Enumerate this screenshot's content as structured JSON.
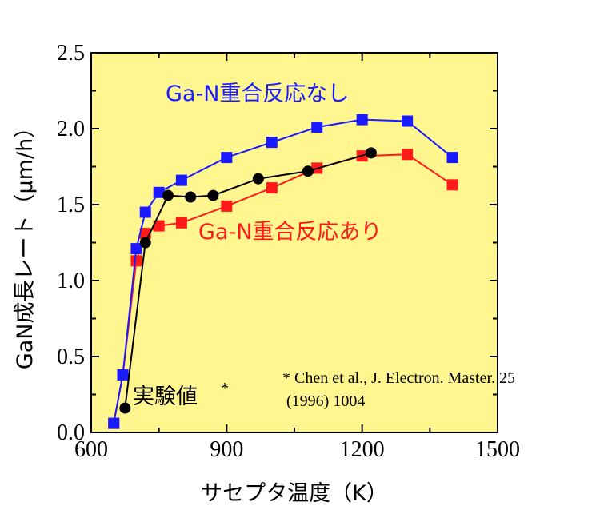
{
  "chart_data": {
    "type": "line",
    "xlabel": "サセプタ温度（K）",
    "ylabel": "GaN成長レート（μm/h）",
    "xlim": [
      600,
      1500
    ],
    "ylim": [
      0.0,
      2.5
    ],
    "xticks": [
      "600",
      "900",
      "1200",
      "1500"
    ],
    "yticks": [
      "0.0",
      "0.5",
      "1.0",
      "1.5",
      "2.0",
      "2.5"
    ],
    "grid": false,
    "background": "#fff68f",
    "series": [
      {
        "name": "Ga-N重合反応なし",
        "color": "#1a1aff",
        "marker": "square",
        "x": [
          650,
          670,
          700,
          720,
          750,
          800,
          900,
          1000,
          1100,
          1200,
          1300,
          1400
        ],
        "y": [
          0.06,
          0.38,
          1.21,
          1.45,
          1.58,
          1.66,
          1.81,
          1.91,
          2.01,
          2.06,
          2.05,
          1.81
        ]
      },
      {
        "name": "Ga-N重合反応あり",
        "color": "#ff1a1a",
        "marker": "square",
        "x": [
          650,
          670,
          700,
          720,
          750,
          800,
          900,
          1000,
          1100,
          1200,
          1300,
          1400
        ],
        "y": [
          0.06,
          0.38,
          1.13,
          1.31,
          1.36,
          1.38,
          1.49,
          1.61,
          1.74,
          1.82,
          1.83,
          1.63
        ]
      },
      {
        "name": "実験値",
        "color": "#000000",
        "marker": "circle",
        "x": [
          675,
          720,
          770,
          820,
          870,
          970,
          1080,
          1220
        ],
        "y": [
          0.16,
          1.25,
          1.56,
          1.55,
          1.56,
          1.67,
          1.72,
          1.84
        ]
      }
    ],
    "series_label_marks": [
      "Ga-N重合反応なし",
      "Ga-N重合反応あり",
      "実験値",
      "*"
    ],
    "annotations": {
      "note_line1": "* Chen et al., J. Electron. Master. 25",
      "note_line2": "(1996) 1004"
    }
  }
}
